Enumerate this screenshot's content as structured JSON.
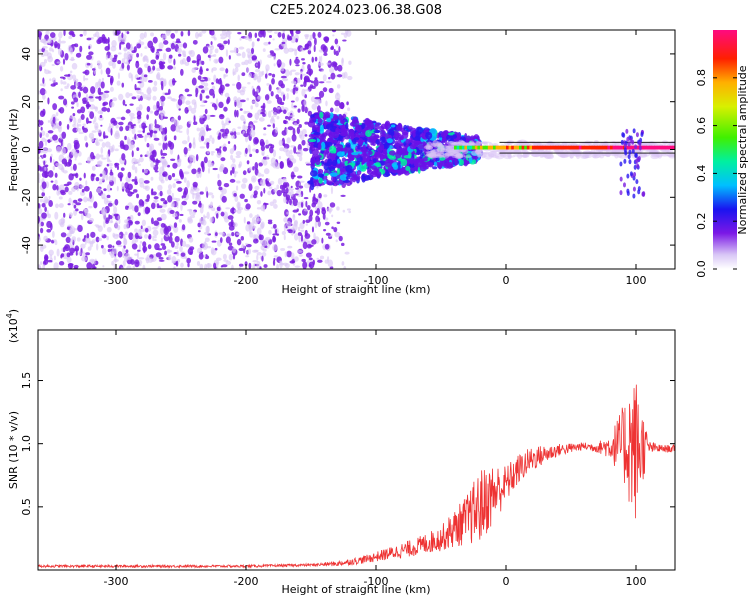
{
  "title": "C2E5.2024.023.06.38.G08",
  "colors": {
    "line": "#ee3333",
    "axis": "#000000",
    "background": "#ffffff",
    "scatter_low": "#d9c4f5",
    "scatter_high": "#7a1fe0"
  },
  "chart_data": [
    {
      "type": "heatmap",
      "xlabel": "Height of straight line (km)",
      "ylabel": "Frequency (Hz)",
      "xlim": [
        -360,
        130
      ],
      "ylim": [
        -50,
        50
      ],
      "x_ticks": [
        -300,
        -200,
        -100,
        0,
        100
      ],
      "x_tick_labels": [
        "-300",
        "-200",
        "-100",
        "0",
        "100"
      ],
      "y_ticks": [
        -40,
        -20,
        0,
        20,
        40
      ],
      "y_tick_labels": [
        "-40",
        "-20",
        "0",
        "20",
        "40"
      ],
      "colorbar": {
        "label": "Normalized spectral amplitude",
        "range": [
          0,
          1
        ],
        "ticks": [
          0.0,
          0.2,
          0.4,
          0.6,
          0.8
        ],
        "tick_labels": [
          "0.0",
          "0.2",
          "0.4",
          "0.6",
          "0.8"
        ]
      },
      "regions": [
        {
          "x_range": [
            -360,
            -140
          ],
          "freq_range": [
            -50,
            50
          ],
          "amplitude": "low, broadband noise"
        },
        {
          "x_range": [
            -150,
            -20
          ],
          "freq_range": [
            -15,
            12
          ],
          "amplitude": "rising, narrowing"
        },
        {
          "x_range": [
            -20,
            130
          ],
          "freq_range": [
            -1,
            2
          ],
          "amplitude": "high, narrow carrier"
        },
        {
          "x_range": [
            85,
            105
          ],
          "freq_range": [
            -20,
            10
          ],
          "amplitude": "disturbance"
        }
      ]
    },
    {
      "type": "line",
      "xlabel": "Height of straight line (km)",
      "ylabel": "SNR (10 * v/v)",
      "y_multiplier": "(x10",
      "y_multiplier_exp": "4",
      "y_multiplier_close": ")",
      "xlim": [
        -360,
        130
      ],
      "ylim": [
        0,
        1.9
      ],
      "x_ticks": [
        -300,
        -200,
        -100,
        0,
        100
      ],
      "x_tick_labels": [
        "-300",
        "-200",
        "-100",
        "0",
        "100"
      ],
      "y_ticks": [
        0.5,
        1.0,
        1.5
      ],
      "y_tick_labels": [
        "0.5",
        "1.0",
        "1.5"
      ],
      "series": [
        {
          "x": [
            -360,
            -300,
            -250,
            -200,
            -150,
            -130,
            -110,
            -90,
            -70,
            -50,
            -30,
            -20,
            -10,
            0,
            10,
            20,
            40,
            60,
            70,
            80,
            90,
            95,
            100,
            105,
            110,
            120,
            130
          ],
          "y": [
            0.03,
            0.03,
            0.03,
            0.03,
            0.04,
            0.05,
            0.08,
            0.13,
            0.18,
            0.25,
            0.4,
            0.5,
            0.6,
            0.68,
            0.8,
            0.88,
            0.95,
            0.98,
            0.97,
            0.98,
            1.0,
            1.0,
            0.95,
            0.98,
            0.97,
            0.96,
            0.96
          ],
          "noise": [
            0.01,
            0.01,
            0.01,
            0.01,
            0.01,
            0.02,
            0.03,
            0.05,
            0.07,
            0.1,
            0.2,
            0.3,
            0.25,
            0.15,
            0.12,
            0.1,
            0.05,
            0.03,
            0.04,
            0.1,
            0.3,
            0.5,
            0.6,
            0.3,
            0.05,
            0.03,
            0.03
          ]
        }
      ]
    }
  ]
}
